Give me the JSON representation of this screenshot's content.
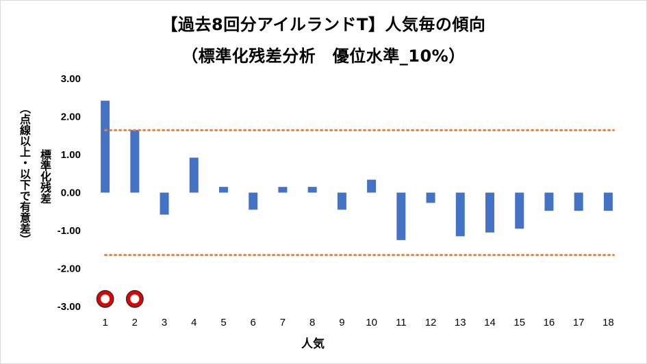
{
  "chart_data": {
    "type": "bar",
    "title": "【過去8回分アイルランドT】人気毎の傾向",
    "subtitle": "（標準化残差分析　優位水準_10%）",
    "xlabel": "人気",
    "ylabel": "標準化残差",
    "ylabel_note": "（点線以上・以下で有意差）",
    "categories": [
      "1",
      "2",
      "3",
      "4",
      "5",
      "6",
      "7",
      "8",
      "9",
      "10",
      "11",
      "12",
      "13",
      "14",
      "15",
      "16",
      "17",
      "18"
    ],
    "series": [
      {
        "values": [
          2.42,
          1.65,
          -0.58,
          0.92,
          0.15,
          -0.45,
          0.15,
          0.15,
          -0.45,
          0.34,
          -1.25,
          -0.27,
          -1.15,
          -1.05,
          -0.95,
          -0.48,
          -0.48,
          -0.48
        ],
        "color": "#4472C4"
      }
    ],
    "ylim": [
      -3.0,
      3.0
    ],
    "yticks": [
      "3.00",
      "2.00",
      "1.00",
      "0.00",
      "-1.00",
      "-2.00",
      "-3.00"
    ],
    "threshold_upper": 1.645,
    "threshold_lower": -1.645,
    "threshold_color": "#ED7D31",
    "highlighted_categories": [
      "1",
      "2"
    ],
    "marker_color": "#E00000",
    "grid": false,
    "legend": "none"
  }
}
